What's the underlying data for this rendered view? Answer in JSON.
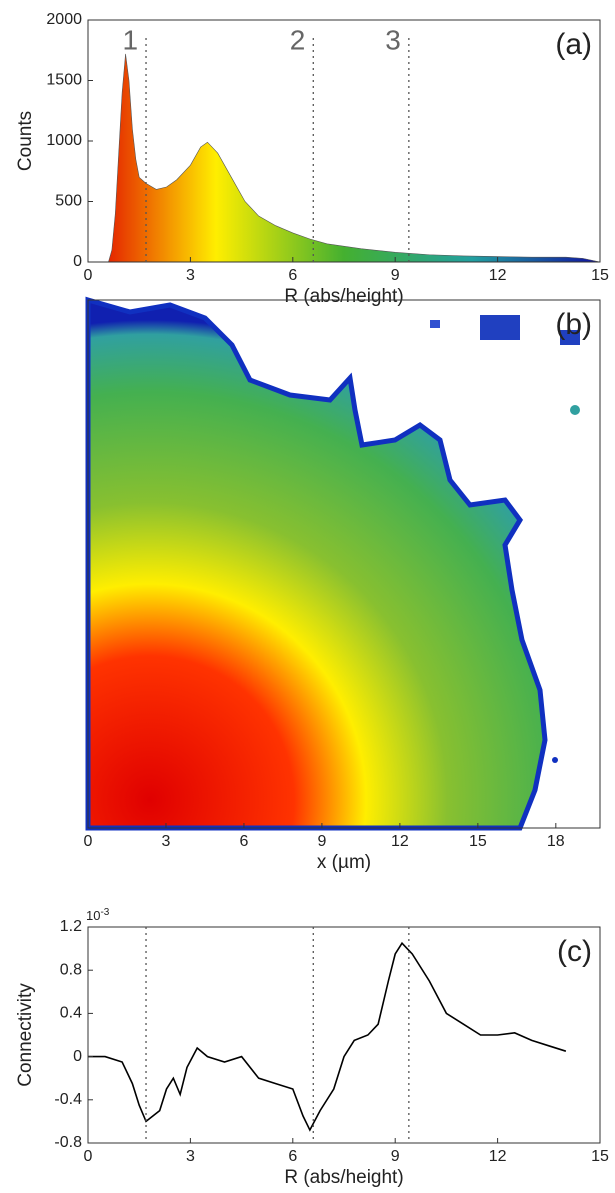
{
  "chart_data": [
    {
      "type": "area",
      "ylabel": "Counts",
      "xlabel": "R (abs/height)",
      "annotation": "(a)",
      "x": [
        0.6,
        0.7,
        0.8,
        0.9,
        1.0,
        1.1,
        1.2,
        1.3,
        1.4,
        1.5,
        1.7,
        2.0,
        2.3,
        2.6,
        3.0,
        3.3,
        3.5,
        3.8,
        4.2,
        4.6,
        5.0,
        5.5,
        6.0,
        6.5,
        7.0,
        8.0,
        9.0,
        10.0,
        11.0,
        12.0,
        13.0,
        14.0,
        14.5,
        15.0
      ],
      "values": [
        0,
        100,
        400,
        900,
        1400,
        1720,
        1500,
        1100,
        850,
        700,
        650,
        600,
        620,
        680,
        800,
        950,
        990,
        900,
        700,
        500,
        380,
        300,
        240,
        190,
        150,
        110,
        80,
        60,
        50,
        45,
        40,
        40,
        30,
        0
      ],
      "colormap": [
        "#e00000",
        "#ffee00",
        "#44b030",
        "#22a0a0",
        "#1010a0"
      ],
      "xlim": [
        0,
        15
      ],
      "xticks": [
        0,
        3,
        6,
        9,
        12,
        15
      ],
      "ylim": [
        0,
        2000
      ],
      "yticks": [
        0,
        500,
        1000,
        1500,
        2000
      ],
      "markers": [
        {
          "x": 1.7,
          "label": "1"
        },
        {
          "x": 6.6,
          "label": "2"
        },
        {
          "x": 9.4,
          "label": "3"
        }
      ]
    },
    {
      "type": "image",
      "xlabel": "x (µm)",
      "annotation": "(b)",
      "colormap": [
        "#e00000",
        "#ffee00",
        "#44b030",
        "#22a0a0",
        "#1010a0"
      ],
      "xlim": [
        0,
        19.7
      ],
      "xticks": [
        0,
        3,
        6,
        9,
        12,
        15,
        18
      ]
    },
    {
      "type": "line",
      "ylabel": "Connectivity",
      "xlabel": "R (abs/height)",
      "annotation": "(c)",
      "y_scale_base": "10",
      "y_scale_exponent": "-3",
      "color": "#000000",
      "x": [
        0,
        0.5,
        1.0,
        1.3,
        1.5,
        1.7,
        1.9,
        2.1,
        2.3,
        2.5,
        2.7,
        2.9,
        3.2,
        3.5,
        4.0,
        4.5,
        5.0,
        5.5,
        6.0,
        6.3,
        6.5,
        6.8,
        7.2,
        7.5,
        7.8,
        8.2,
        8.5,
        8.8,
        9.0,
        9.2,
        9.5,
        10.0,
        10.5,
        11.0,
        11.5,
        12.0,
        12.5,
        13.0,
        13.5,
        14.0
      ],
      "values": [
        0,
        0,
        -0.05,
        -0.25,
        -0.45,
        -0.6,
        -0.55,
        -0.5,
        -0.3,
        -0.2,
        -0.35,
        -0.1,
        0.08,
        0,
        -0.05,
        0,
        -0.2,
        -0.25,
        -0.3,
        -0.55,
        -0.68,
        -0.5,
        -0.3,
        0,
        0.15,
        0.2,
        0.3,
        0.7,
        0.95,
        1.05,
        0.95,
        0.7,
        0.4,
        0.3,
        0.2,
        0.2,
        0.22,
        0.15,
        0.1,
        0.05
      ],
      "xlim": [
        0,
        15
      ],
      "xticks": [
        0,
        3,
        6,
        9,
        12,
        15
      ],
      "ylim": [
        -0.8,
        1.2
      ],
      "yticks": [
        -0.8,
        -0.4,
        0,
        0.4,
        0.8,
        1.2
      ],
      "markers": [
        {
          "x": 1.7
        },
        {
          "x": 6.6
        },
        {
          "x": 9.4
        }
      ]
    }
  ]
}
